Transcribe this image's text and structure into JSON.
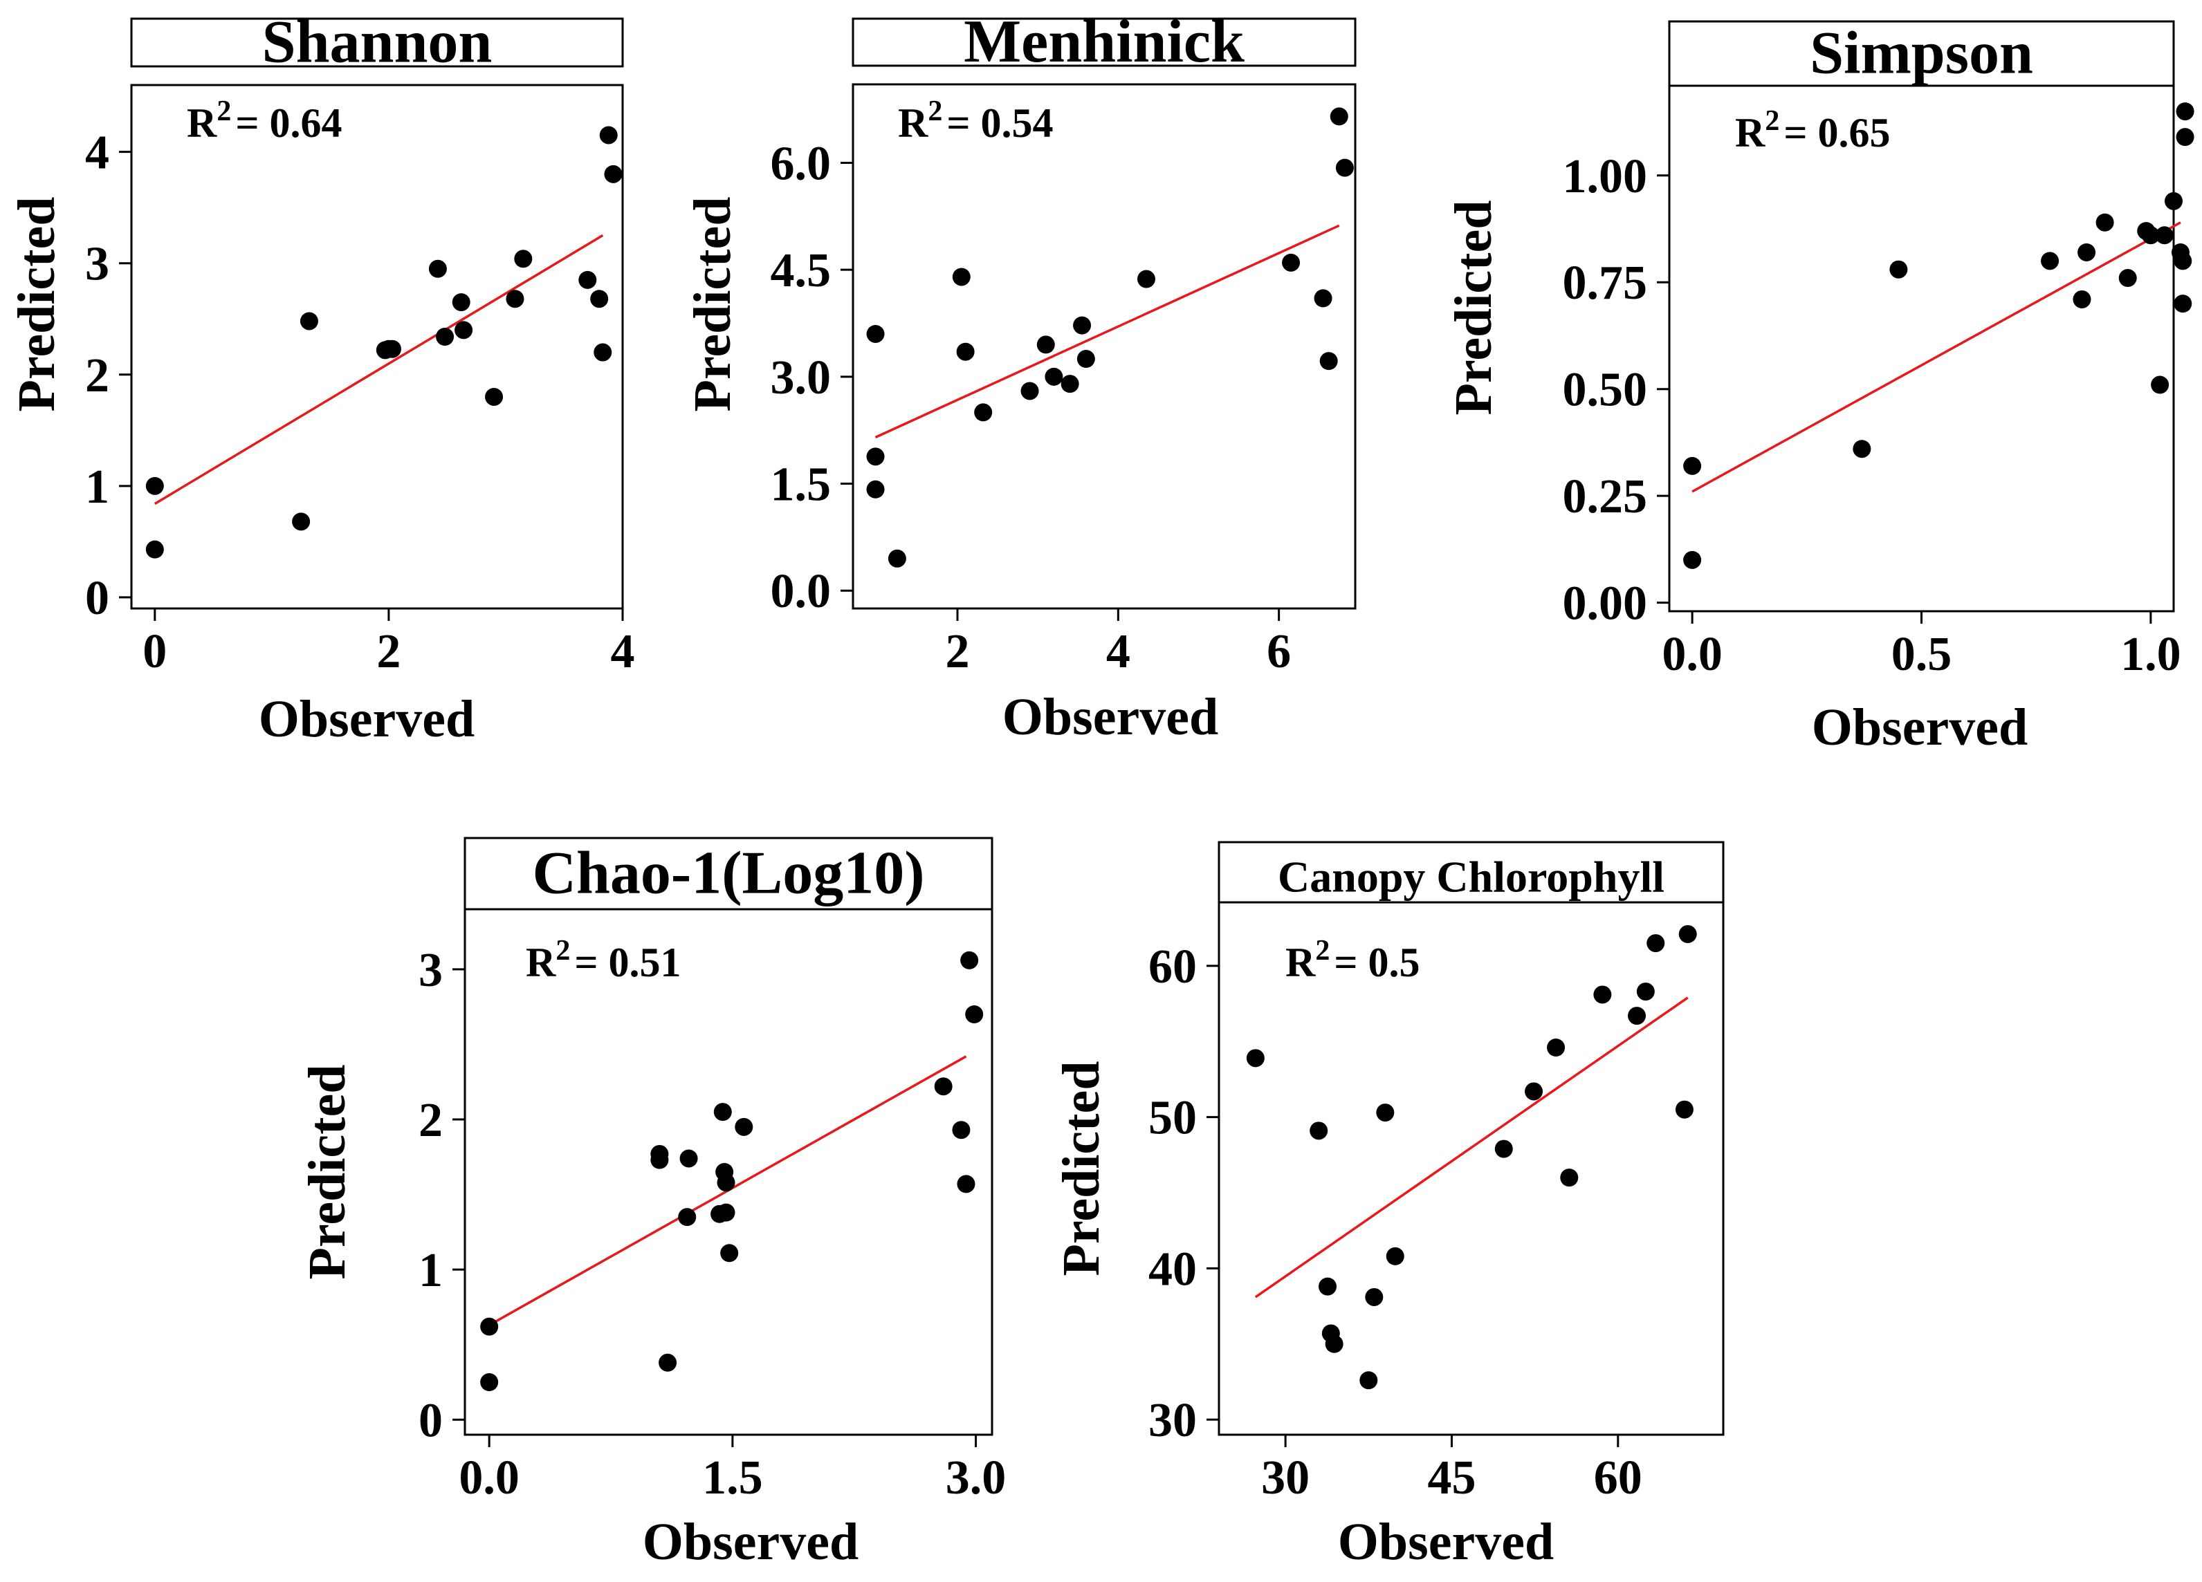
{
  "figure": {
    "colors": {
      "points": "#000000",
      "fit_line": "#e8191b",
      "frame": "#000000",
      "background": "#ffffff"
    }
  },
  "chart_data": [
    {
      "type": "scatter",
      "title": "Shannon",
      "xlabel": "Observed",
      "ylabel": "Predicted",
      "r2_label": "R",
      "r2_sup": "2",
      "r2_value": "= 0.64",
      "xlim": [
        -0.2,
        4.0
      ],
      "ylim": [
        -0.1,
        4.6
      ],
      "xticks": [
        0,
        2,
        4
      ],
      "xtick_labels": [
        "0",
        "2",
        "4"
      ],
      "yticks": [
        0,
        1,
        2,
        3,
        4
      ],
      "ytick_labels": [
        "0",
        "1",
        "2",
        "3",
        "4"
      ],
      "points": [
        [
          0.0,
          1.0
        ],
        [
          0.0,
          0.43
        ],
        [
          1.25,
          0.68
        ],
        [
          1.32,
          2.48
        ],
        [
          1.97,
          2.22
        ],
        [
          2.0,
          2.23
        ],
        [
          2.03,
          2.23
        ],
        [
          2.42,
          2.95
        ],
        [
          2.48,
          2.34
        ],
        [
          2.62,
          2.65
        ],
        [
          2.64,
          2.4
        ],
        [
          2.9,
          1.8
        ],
        [
          3.08,
          2.68
        ],
        [
          3.15,
          3.04
        ],
        [
          3.7,
          2.85
        ],
        [
          3.8,
          2.68
        ],
        [
          3.83,
          2.2
        ],
        [
          3.88,
          4.15
        ],
        [
          3.92,
          3.8
        ]
      ],
      "fit_line": [
        [
          0.0,
          0.84
        ],
        [
          3.83,
          3.25
        ]
      ]
    },
    {
      "type": "scatter",
      "title": "Menhinick",
      "xlabel": "Observed",
      "ylabel": "Predicted",
      "r2_label": "R",
      "r2_sup": "2",
      "r2_value": "= 0.54",
      "xlim": [
        0.7,
        6.95
      ],
      "ylim": [
        -0.25,
        7.1
      ],
      "xticks": [
        2,
        4,
        6
      ],
      "xtick_labels": [
        "2",
        "4",
        "6"
      ],
      "yticks": [
        0.0,
        1.5,
        3.0,
        4.5,
        6.0
      ],
      "ytick_labels": [
        "0.0",
        "1.5",
        "3.0",
        "4.5",
        "6.0"
      ],
      "points": [
        [
          0.98,
          3.6
        ],
        [
          0.98,
          1.88
        ],
        [
          0.98,
          1.42
        ],
        [
          1.25,
          0.45
        ],
        [
          2.05,
          4.4
        ],
        [
          2.1,
          3.35
        ],
        [
          2.32,
          2.5
        ],
        [
          2.9,
          2.8
        ],
        [
          3.1,
          3.45
        ],
        [
          3.2,
          3.0
        ],
        [
          3.4,
          2.9
        ],
        [
          3.55,
          3.72
        ],
        [
          3.6,
          3.25
        ],
        [
          4.35,
          4.37
        ],
        [
          6.15,
          4.6
        ],
        [
          6.55,
          4.1
        ],
        [
          6.62,
          3.22
        ],
        [
          6.75,
          6.65
        ],
        [
          6.82,
          5.93
        ]
      ],
      "fit_line": [
        [
          0.98,
          2.15
        ],
        [
          6.75,
          5.12
        ]
      ]
    },
    {
      "type": "scatter",
      "title": "Simpson",
      "xlabel": "Observed",
      "ylabel": "Predicted",
      "r2_label": "R",
      "r2_sup": "2",
      "r2_value": "=  0.65",
      "xlim": [
        -0.05,
        1.05
      ],
      "ylim": [
        -0.02,
        1.21
      ],
      "xticks": [
        0.0,
        0.5,
        1.0
      ],
      "xtick_labels": [
        "0.0",
        "0.5",
        "1.0"
      ],
      "yticks": [
        0.0,
        0.25,
        0.5,
        0.75,
        1.0
      ],
      "ytick_labels": [
        "0.00",
        "0.25",
        "0.50",
        "0.75",
        "1.00"
      ],
      "points": [
        [
          0.0,
          0.32
        ],
        [
          0.0,
          0.1
        ],
        [
          0.37,
          0.36
        ],
        [
          0.45,
          0.78
        ],
        [
          0.78,
          0.8
        ],
        [
          0.85,
          0.71
        ],
        [
          0.86,
          0.82
        ],
        [
          0.9,
          0.89
        ],
        [
          0.95,
          0.76
        ],
        [
          0.99,
          0.87
        ],
        [
          1.0,
          0.86
        ],
        [
          1.02,
          0.51
        ],
        [
          1.03,
          0.86
        ],
        [
          1.05,
          0.94
        ],
        [
          1.065,
          0.82
        ],
        [
          1.07,
          0.7
        ],
        [
          1.07,
          0.8
        ],
        [
          1.075,
          1.15
        ],
        [
          1.075,
          1.09
        ]
      ],
      "fit_line": [
        [
          0.0,
          0.26
        ],
        [
          1.065,
          0.89
        ]
      ]
    },
    {
      "type": "scatter",
      "title": "Chao-1(Log10)",
      "xlabel": "Observed",
      "ylabel": "Predicted",
      "r2_label": "R",
      "r2_sup": "2",
      "r2_value": "= 0.51",
      "xlim": [
        -0.15,
        3.1
      ],
      "ylim": [
        -0.1,
        3.4
      ],
      "xticks": [
        0.0,
        1.5,
        3.0
      ],
      "xtick_labels": [
        "0.0",
        "1.5",
        "3.0"
      ],
      "yticks": [
        0,
        1,
        2,
        3
      ],
      "ytick_labels": [
        "0",
        "1",
        "2",
        "3"
      ],
      "points": [
        [
          0.0,
          0.62
        ],
        [
          0.0,
          0.25
        ],
        [
          1.05,
          1.77
        ],
        [
          1.05,
          1.73
        ],
        [
          1.1,
          0.38
        ],
        [
          1.22,
          1.35
        ],
        [
          1.23,
          1.74
        ],
        [
          1.42,
          1.37
        ],
        [
          1.44,
          2.05
        ],
        [
          1.45,
          1.65
        ],
        [
          1.46,
          1.58
        ],
        [
          1.46,
          1.38
        ],
        [
          1.48,
          1.11
        ],
        [
          1.57,
          1.95
        ],
        [
          2.8,
          2.22
        ],
        [
          2.91,
          1.93
        ],
        [
          2.94,
          1.57
        ],
        [
          2.96,
          3.06
        ],
        [
          2.99,
          2.7
        ]
      ],
      "fit_line": [
        [
          0.0,
          0.63
        ],
        [
          2.94,
          2.42
        ]
      ]
    },
    {
      "type": "scatter",
      "title": "Canopy Chlorophyll",
      "xlabel": "Observed",
      "ylabel": "Predicted",
      "r2_label": "R",
      "r2_sup": "2",
      "r2_value": "=  0.5",
      "xlim": [
        24.0,
        69.5
      ],
      "ylim": [
        29.0,
        64.2
      ],
      "xticks": [
        30,
        45,
        60
      ],
      "xtick_labels": [
        "30",
        "45",
        "60"
      ],
      "yticks": [
        30,
        40,
        50,
        60
      ],
      "ytick_labels": [
        "30",
        "40",
        "50",
        "60"
      ],
      "points": [
        [
          27.3,
          53.9
        ],
        [
          33.0,
          49.1
        ],
        [
          33.8,
          38.8
        ],
        [
          34.1,
          35.7
        ],
        [
          34.4,
          35.0
        ],
        [
          37.5,
          32.6
        ],
        [
          38.0,
          38.1
        ],
        [
          39.0,
          50.3
        ],
        [
          39.9,
          40.8
        ],
        [
          49.7,
          47.9
        ],
        [
          52.4,
          51.7
        ],
        [
          54.4,
          54.6
        ],
        [
          55.6,
          46.0
        ],
        [
          58.6,
          58.1
        ],
        [
          61.7,
          56.7
        ],
        [
          62.5,
          58.3
        ],
        [
          63.4,
          61.5
        ],
        [
          66.3,
          62.1
        ],
        [
          66.0,
          50.5
        ]
      ],
      "fit_line": [
        [
          27.3,
          38.1
        ],
        [
          66.3,
          57.9
        ]
      ]
    }
  ]
}
